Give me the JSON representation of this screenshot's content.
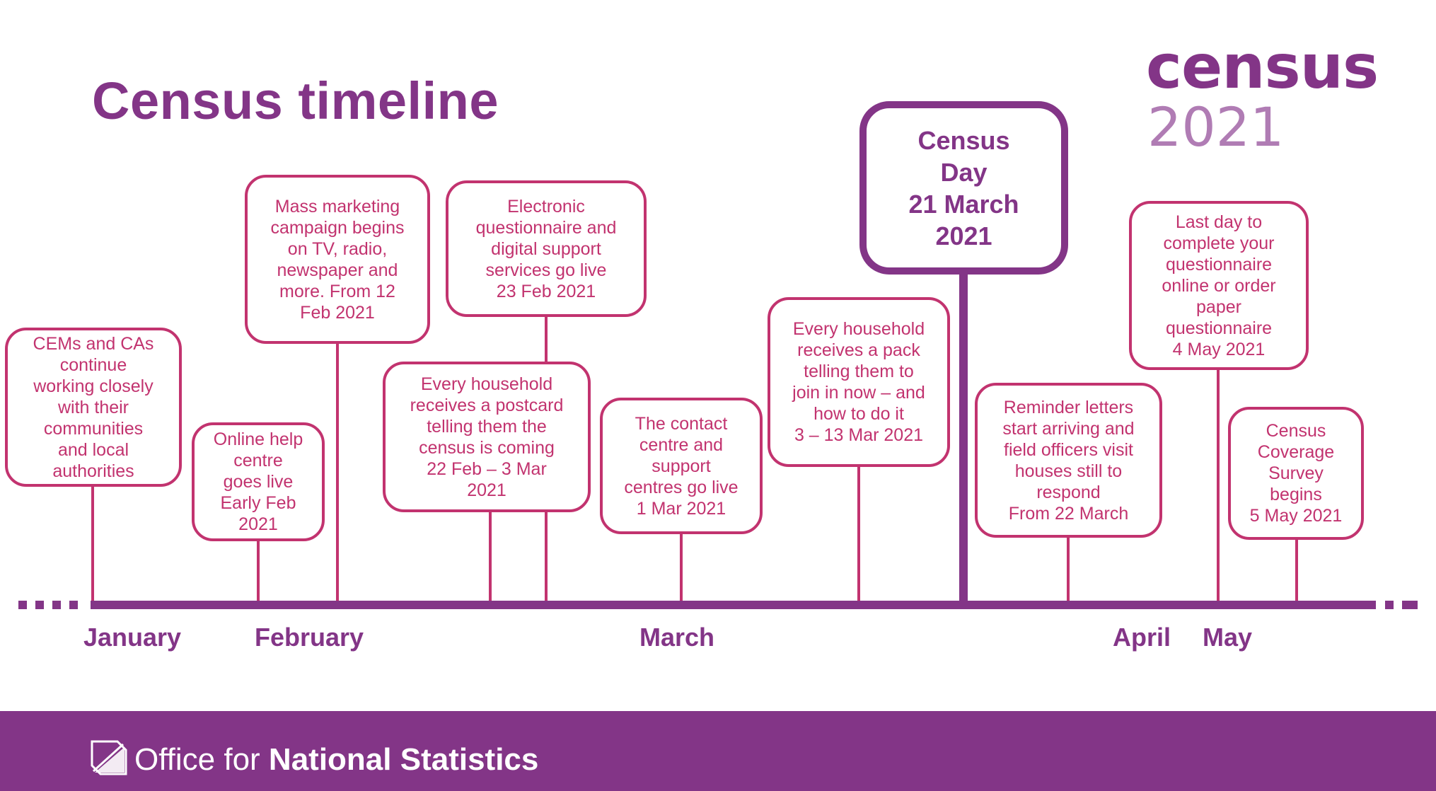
{
  "title": "Census timeline",
  "logo": {
    "word": "census",
    "year": "2021"
  },
  "events": [
    {
      "lines": [
        "CEMs and CAs",
        "continue",
        "working closely",
        "with their",
        "communities",
        "and local",
        "authorities"
      ]
    },
    {
      "lines": [
        "Online help",
        "centre",
        "goes live",
        "Early Feb",
        "2021"
      ]
    },
    {
      "lines": [
        "Mass marketing",
        "campaign begins",
        "on TV, radio,",
        "newspaper and",
        "more. From 12",
        "Feb 2021"
      ]
    },
    {
      "lines": [
        "Every household",
        "receives a postcard",
        "telling them the",
        "census is coming",
        "22 Feb – 3 Mar",
        "2021"
      ]
    },
    {
      "lines": [
        "Electronic",
        "questionnaire and",
        "digital support",
        "services go live",
        "23 Feb 2021"
      ]
    },
    {
      "lines": [
        "The contact",
        "centre and",
        "support",
        "centres go live",
        "1 Mar 2021"
      ]
    },
    {
      "lines": [
        "Every household",
        "receives a pack",
        "telling them to",
        "join in now – and",
        "how to do it",
        "3 – 13 Mar 2021"
      ]
    },
    {
      "lines": [
        "Census",
        "Day",
        "21 March",
        "2021"
      ]
    },
    {
      "lines": [
        "Reminder letters",
        "start arriving and",
        "field officers visit",
        "houses still to",
        "respond",
        "From 22 March"
      ]
    },
    {
      "lines": [
        "Last day to",
        "complete your",
        "questionnaire",
        "online or order",
        "paper",
        "questionnaire",
        "4 May 2021"
      ]
    },
    {
      "lines": [
        "Census",
        "Coverage",
        "Survey",
        "begins",
        "5 May 2021"
      ]
    }
  ],
  "months": [
    "January",
    "February",
    "March",
    "April",
    "May"
  ],
  "footer": {
    "org_light": "Office for ",
    "org_bold": "National Statistics"
  },
  "colors": {
    "purple": "#833587",
    "pink": "#c2336f",
    "light_purple": "#b07cb4"
  }
}
